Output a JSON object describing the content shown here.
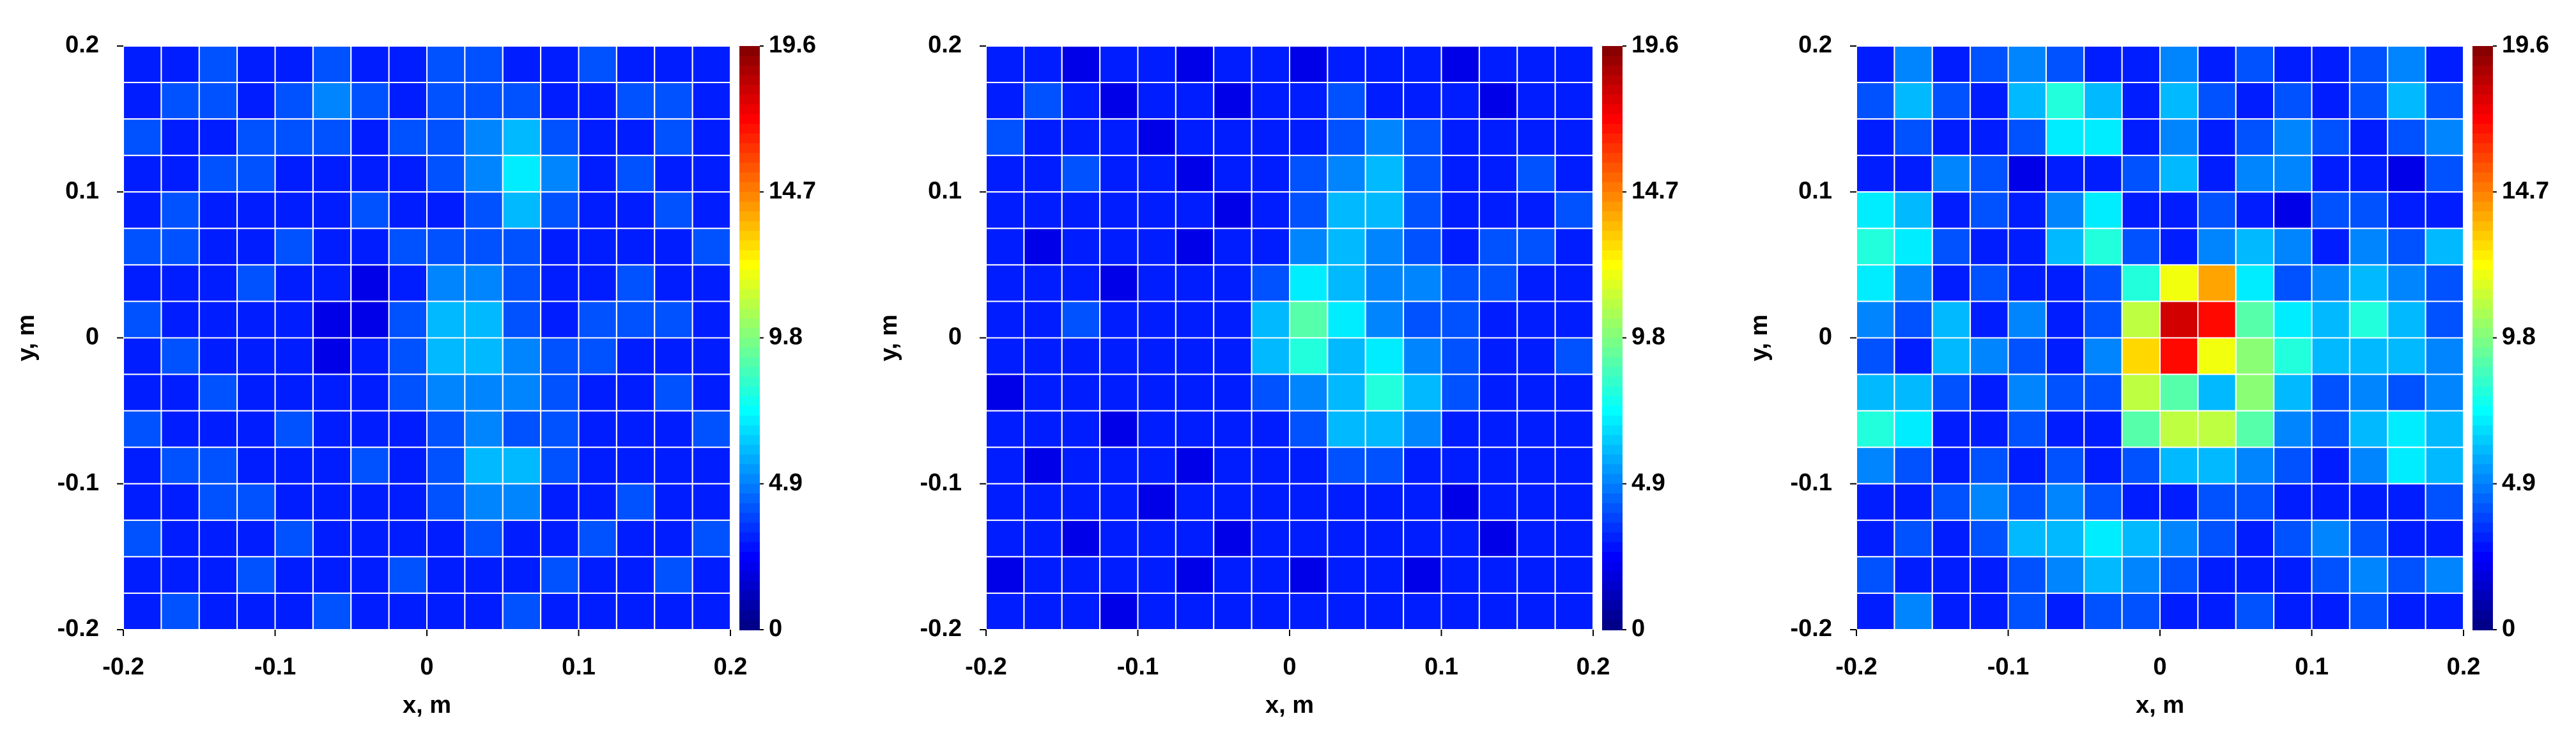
{
  "chart_data": [
    {
      "type": "heatmap",
      "colormap": "jet",
      "grid": true,
      "xlabel": "x, m",
      "ylabel": "y, m",
      "xlim": [
        -0.2,
        0.2
      ],
      "ylim": [
        -0.2,
        0.2
      ],
      "xticks": [
        -0.2,
        -0.1,
        0,
        0.1,
        0.2
      ],
      "yticks": [
        -0.2,
        -0.1,
        0,
        0.1,
        0.2
      ],
      "zlim": [
        0,
        19.6
      ],
      "zticks": [
        0,
        4.9,
        9.8,
        14.7,
        19.6
      ],
      "x": [
        -0.1875,
        -0.1625,
        -0.1375,
        -0.1125,
        -0.0875,
        -0.0625,
        -0.0375,
        -0.0125,
        0.0125,
        0.0375,
        0.0625,
        0.0875,
        0.1125,
        0.1375,
        0.1625,
        0.1875
      ],
      "y": [
        0.1875,
        0.1625,
        0.1375,
        0.1125,
        0.0875,
        0.0625,
        0.0375,
        0.0125,
        -0.0125,
        -0.0375,
        -0.0625,
        -0.0875,
        -0.1125,
        -0.1375,
        -0.1625,
        -0.1875
      ],
      "z": [
        [
          3,
          3,
          4,
          3,
          3,
          4,
          3,
          3,
          4,
          4,
          3,
          3,
          4,
          3,
          3,
          3
        ],
        [
          3,
          4,
          4,
          3,
          4,
          5,
          4,
          3,
          4,
          4,
          4,
          3,
          3,
          4,
          4,
          3
        ],
        [
          4,
          3,
          3,
          4,
          4,
          4,
          3,
          4,
          4,
          5,
          6,
          4,
          3,
          3,
          4,
          3
        ],
        [
          3,
          3,
          4,
          4,
          3,
          3,
          3,
          3,
          4,
          5,
          7,
          5,
          3,
          4,
          3,
          3
        ],
        [
          3,
          4,
          3,
          3,
          3,
          3,
          4,
          3,
          3,
          4,
          6,
          4,
          3,
          3,
          4,
          3
        ],
        [
          4,
          4,
          3,
          3,
          4,
          3,
          3,
          4,
          4,
          4,
          4,
          3,
          3,
          3,
          3,
          4
        ],
        [
          3,
          3,
          3,
          4,
          3,
          3,
          2,
          3,
          5,
          5,
          4,
          3,
          3,
          4,
          3,
          3
        ],
        [
          4,
          3,
          3,
          3,
          3,
          2,
          2,
          4,
          6,
          6,
          4,
          3,
          4,
          4,
          4,
          3
        ],
        [
          3,
          4,
          3,
          3,
          3,
          2,
          3,
          4,
          6,
          6,
          5,
          4,
          4,
          3,
          3,
          3
        ],
        [
          3,
          3,
          4,
          3,
          3,
          3,
          3,
          4,
          5,
          5,
          5,
          4,
          3,
          3,
          4,
          3
        ],
        [
          4,
          3,
          3,
          3,
          4,
          3,
          3,
          3,
          4,
          5,
          4,
          4,
          3,
          3,
          3,
          4
        ],
        [
          3,
          4,
          4,
          3,
          3,
          3,
          4,
          3,
          4,
          6,
          6,
          4,
          3,
          3,
          3,
          3
        ],
        [
          3,
          3,
          4,
          4,
          3,
          3,
          3,
          3,
          4,
          5,
          5,
          3,
          3,
          4,
          3,
          3
        ],
        [
          4,
          3,
          3,
          3,
          4,
          3,
          3,
          3,
          3,
          4,
          3,
          3,
          4,
          3,
          3,
          4
        ],
        [
          3,
          3,
          3,
          4,
          3,
          3,
          3,
          4,
          3,
          3,
          3,
          4,
          3,
          3,
          4,
          3
        ],
        [
          3,
          4,
          3,
          3,
          3,
          4,
          3,
          3,
          3,
          3,
          4,
          3,
          3,
          3,
          3,
          3
        ]
      ]
    },
    {
      "type": "heatmap",
      "colormap": "jet",
      "grid": true,
      "xlabel": "x, m",
      "ylabel": "y, m",
      "xlim": [
        -0.2,
        0.2
      ],
      "ylim": [
        -0.2,
        0.2
      ],
      "xticks": [
        -0.2,
        -0.1,
        0,
        0.1,
        0.2
      ],
      "yticks": [
        -0.2,
        -0.1,
        0,
        0.1,
        0.2
      ],
      "zlim": [
        0,
        19.6
      ],
      "zticks": [
        0,
        4.9,
        9.8,
        14.7,
        19.6
      ],
      "x": [
        -0.1875,
        -0.1625,
        -0.1375,
        -0.1125,
        -0.0875,
        -0.0625,
        -0.0375,
        -0.0125,
        0.0125,
        0.0375,
        0.0625,
        0.0875,
        0.1125,
        0.1375,
        0.1625,
        0.1875
      ],
      "y": [
        0.1875,
        0.1625,
        0.1375,
        0.1125,
        0.0875,
        0.0625,
        0.0375,
        0.0125,
        -0.0125,
        -0.0375,
        -0.0625,
        -0.0875,
        -0.1125,
        -0.1375,
        -0.1625,
        -0.1875
      ],
      "z": [
        [
          3,
          3,
          2,
          3,
          3,
          2,
          3,
          3,
          2,
          3,
          3,
          3,
          2,
          3,
          3,
          3
        ],
        [
          3,
          4,
          3,
          2,
          3,
          3,
          2,
          3,
          3,
          4,
          3,
          3,
          3,
          2,
          3,
          3
        ],
        [
          4,
          3,
          3,
          3,
          2,
          3,
          3,
          3,
          3,
          4,
          5,
          4,
          3,
          3,
          3,
          3
        ],
        [
          3,
          3,
          4,
          3,
          3,
          2,
          3,
          3,
          4,
          5,
          6,
          4,
          3,
          3,
          4,
          3
        ],
        [
          3,
          3,
          3,
          3,
          3,
          3,
          2,
          3,
          4,
          6,
          6,
          4,
          3,
          3,
          3,
          4
        ],
        [
          3,
          2,
          3,
          3,
          3,
          2,
          3,
          3,
          5,
          6,
          5,
          4,
          3,
          4,
          4,
          3
        ],
        [
          3,
          3,
          3,
          2,
          3,
          3,
          3,
          4,
          7,
          6,
          5,
          5,
          4,
          4,
          3,
          3
        ],
        [
          3,
          3,
          4,
          3,
          3,
          3,
          3,
          6,
          9,
          7,
          5,
          4,
          4,
          3,
          3,
          3
        ],
        [
          3,
          3,
          3,
          3,
          3,
          3,
          3,
          6,
          8,
          6,
          7,
          5,
          4,
          3,
          3,
          4
        ],
        [
          2,
          3,
          3,
          3,
          3,
          3,
          3,
          4,
          5,
          6,
          8,
          6,
          4,
          3,
          3,
          3
        ],
        [
          3,
          3,
          3,
          2,
          3,
          3,
          3,
          3,
          4,
          6,
          6,
          5,
          3,
          3,
          3,
          3
        ],
        [
          3,
          2,
          3,
          3,
          3,
          2,
          3,
          3,
          3,
          4,
          4,
          3,
          3,
          3,
          3,
          3
        ],
        [
          3,
          3,
          3,
          3,
          2,
          3,
          3,
          3,
          3,
          3,
          3,
          3,
          2,
          3,
          3,
          3
        ],
        [
          3,
          3,
          2,
          3,
          3,
          3,
          2,
          3,
          3,
          3,
          3,
          3,
          3,
          2,
          3,
          3
        ],
        [
          2,
          3,
          3,
          3,
          3,
          2,
          3,
          3,
          2,
          3,
          3,
          2,
          3,
          3,
          3,
          3
        ],
        [
          3,
          3,
          3,
          2,
          3,
          3,
          3,
          3,
          3,
          3,
          3,
          3,
          3,
          3,
          3,
          3
        ]
      ]
    },
    {
      "type": "heatmap",
      "colormap": "jet",
      "grid": true,
      "xlabel": "x, m",
      "ylabel": "y, m",
      "xlim": [
        -0.2,
        0.2
      ],
      "ylim": [
        -0.2,
        0.2
      ],
      "xticks": [
        -0.2,
        -0.1,
        0,
        0.1,
        0.2
      ],
      "yticks": [
        -0.2,
        -0.1,
        0,
        0.1,
        0.2
      ],
      "zlim": [
        0,
        19.6
      ],
      "zticks": [
        0,
        4.9,
        9.8,
        14.7,
        19.6
      ],
      "x": [
        -0.1875,
        -0.1625,
        -0.1375,
        -0.1125,
        -0.0875,
        -0.0625,
        -0.0375,
        -0.0125,
        0.0125,
        0.0375,
        0.0625,
        0.0875,
        0.1125,
        0.1375,
        0.1625,
        0.1875
      ],
      "y": [
        0.1875,
        0.1625,
        0.1375,
        0.1125,
        0.0875,
        0.0625,
        0.0375,
        0.0125,
        -0.0125,
        -0.0375,
        -0.0625,
        -0.0875,
        -0.1125,
        -0.1375,
        -0.1625,
        -0.1875
      ],
      "z": [
        [
          3,
          5,
          3,
          4,
          5,
          4,
          3,
          3,
          5,
          3,
          4,
          3,
          3,
          4,
          5,
          3
        ],
        [
          4,
          6,
          4,
          3,
          6,
          8,
          6,
          3,
          6,
          4,
          3,
          4,
          3,
          4,
          6,
          4
        ],
        [
          3,
          4,
          3,
          3,
          4,
          7,
          7,
          3,
          5,
          3,
          4,
          5,
          4,
          3,
          4,
          5
        ],
        [
          3,
          3,
          5,
          4,
          2,
          3,
          3,
          4,
          6,
          3,
          5,
          5,
          3,
          3,
          2,
          4
        ],
        [
          7,
          6,
          3,
          4,
          3,
          5,
          7,
          3,
          3,
          4,
          3,
          2,
          4,
          4,
          3,
          3
        ],
        [
          8,
          7,
          4,
          3,
          3,
          6,
          8,
          4,
          3,
          5,
          6,
          5,
          3,
          5,
          4,
          6
        ],
        [
          7,
          5,
          3,
          4,
          3,
          3,
          4,
          8,
          12,
          14,
          7,
          4,
          5,
          6,
          5,
          4
        ],
        [
          5,
          4,
          6,
          3,
          5,
          3,
          4,
          11,
          18,
          17,
          9,
          7,
          6,
          8,
          6,
          4
        ],
        [
          4,
          3,
          6,
          5,
          4,
          3,
          5,
          13,
          17,
          12,
          10,
          8,
          6,
          6,
          6,
          5
        ],
        [
          6,
          6,
          4,
          3,
          5,
          4,
          4,
          11,
          9,
          6,
          10,
          6,
          4,
          5,
          4,
          5
        ],
        [
          8,
          7,
          3,
          3,
          4,
          3,
          3,
          9,
          11,
          11,
          9,
          5,
          4,
          6,
          7,
          6
        ],
        [
          5,
          4,
          3,
          4,
          3,
          4,
          3,
          4,
          6,
          6,
          5,
          4,
          3,
          5,
          7,
          6
        ],
        [
          3,
          3,
          4,
          5,
          4,
          5,
          4,
          3,
          3,
          4,
          4,
          3,
          3,
          3,
          3,
          4
        ],
        [
          3,
          4,
          3,
          4,
          6,
          6,
          7,
          6,
          5,
          4,
          3,
          4,
          5,
          4,
          3,
          3
        ],
        [
          4,
          3,
          3,
          3,
          4,
          5,
          6,
          5,
          4,
          3,
          3,
          3,
          4,
          5,
          4,
          5
        ],
        [
          3,
          5,
          3,
          3,
          4,
          3,
          4,
          4,
          3,
          3,
          4,
          3,
          3,
          4,
          3,
          3
        ]
      ]
    }
  ]
}
